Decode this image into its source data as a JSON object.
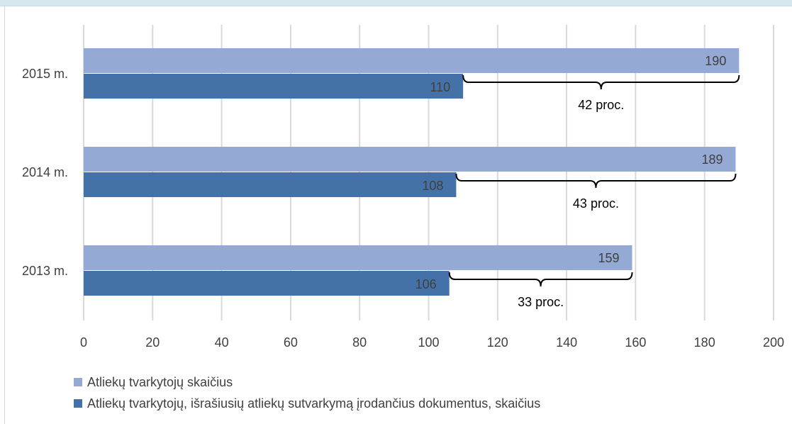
{
  "chart_data": {
    "type": "bar",
    "orientation": "horizontal",
    "categories": [
      "2015 m.",
      "2014 m.",
      "2013 m."
    ],
    "series": [
      {
        "name": "Atliekų tvarkytojų skaičius",
        "values": [
          190,
          189,
          159
        ],
        "color": "#94a9d3"
      },
      {
        "name": "Atliekų tvarkytojų, išrašiusių atliekų sutvarkymą įrodančius dokumentus, skaičius",
        "values": [
          110,
          108,
          106
        ],
        "color": "#4472a8"
      }
    ],
    "brackets": [
      "42 proc.",
      "43 proc.",
      "33 proc."
    ],
    "xlim": [
      0,
      200
    ],
    "xticks": [
      "0",
      "20",
      "40",
      "60",
      "80",
      "100",
      "120",
      "140",
      "160",
      "180",
      "200"
    ],
    "grid": true,
    "legend_position": "bottom-left",
    "title": "",
    "xlabel": "",
    "ylabel": ""
  }
}
